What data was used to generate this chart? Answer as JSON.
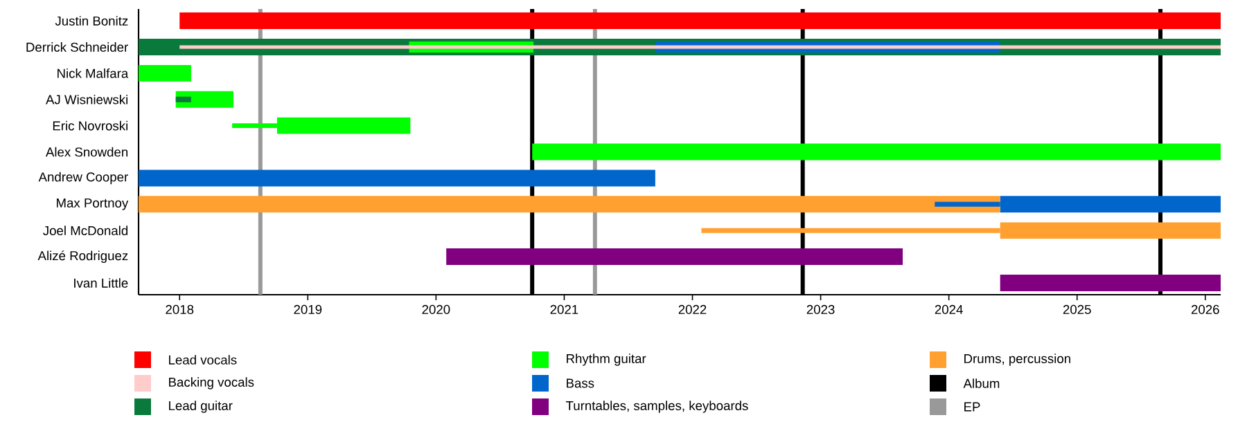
{
  "chart_data": {
    "type": "bar",
    "orientation": "horizontal",
    "categories": [
      "Justin Bonitz",
      "Derrick Schneider",
      "Nick Malfara",
      "AJ Wisniewski",
      "Eric Novroski",
      "Alex Snowden",
      "Andrew Cooper",
      "Max Portnoy",
      "Joel McDonald",
      "Alizé Rodriguez",
      "Ivan Little"
    ],
    "xlim": [
      2017.68,
      2026.12
    ],
    "xticks": [
      2018,
      2019,
      2020,
      2021,
      2022,
      2023,
      2024,
      2025,
      2026
    ],
    "series": [
      {
        "name": "Lead vocals",
        "color": "#ff0000",
        "base": [
          2018.0,
          null,
          null,
          null,
          null,
          null,
          null,
          null,
          null,
          null,
          null
        ],
        "values": [
          8.12,
          null,
          null,
          null,
          null,
          null,
          null,
          null,
          null,
          null,
          null
        ]
      },
      {
        "name": "Backing vocals",
        "color": "#ffcccc",
        "base": [
          null,
          2018.0,
          null,
          null,
          null,
          null,
          null,
          null,
          null,
          null,
          null
        ],
        "values": [
          null,
          8.12,
          null,
          null,
          null,
          null,
          null,
          null,
          null,
          null,
          null
        ]
      },
      {
        "name": "Lead guitar",
        "color": "#0a7a3c",
        "base": [
          null,
          2017.68,
          null,
          null,
          null,
          null,
          null,
          null,
          null,
          null,
          null
        ],
        "values": [
          null,
          8.44,
          null,
          null,
          null,
          null,
          null,
          null,
          null,
          null,
          null
        ]
      },
      {
        "name": "Rhythm guitar",
        "color": "#00ff00",
        "base": [
          null,
          null,
          2017.68,
          2017.97,
          2018.76,
          2020.75,
          null,
          null,
          null,
          null,
          null
        ],
        "values": [
          null,
          null,
          0.41,
          0.45,
          1.04,
          5.37,
          null,
          null,
          null,
          null,
          null
        ]
      },
      {
        "name": "Bass",
        "color": "#0066cc",
        "base": [
          null,
          null,
          null,
          null,
          null,
          null,
          2017.68,
          2024.4,
          null,
          null,
          null
        ],
        "values": [
          null,
          null,
          null,
          null,
          null,
          null,
          4.03,
          1.72,
          null,
          null,
          null
        ]
      },
      {
        "name": "Turntables, samples, keyboards",
        "color": "#800080",
        "base": [
          null,
          null,
          null,
          null,
          null,
          null,
          null,
          null,
          null,
          2020.08,
          2024.4
        ],
        "values": [
          null,
          null,
          null,
          null,
          null,
          null,
          null,
          null,
          null,
          3.56,
          1.72
        ]
      },
      {
        "name": "Drums, percussion",
        "color": "#ffa030",
        "base": [
          null,
          null,
          null,
          null,
          null,
          null,
          null,
          2017.68,
          2024.4,
          null,
          null
        ],
        "values": [
          null,
          null,
          null,
          null,
          null,
          null,
          null,
          6.72,
          1.72,
          null,
          null
        ]
      },
      {
        "color": "#00ff00",
        "base": [
          null,
          2019.79,
          null,
          null,
          null,
          null,
          null,
          null,
          null,
          null,
          null
        ],
        "values": [
          null,
          0.97,
          null,
          null,
          null,
          null,
          null,
          null,
          null,
          null,
          null
        ]
      },
      {
        "color": "#0066cc",
        "base": [
          null,
          2021.71,
          null,
          null,
          null,
          null,
          null,
          null,
          null,
          null,
          null
        ],
        "values": [
          null,
          2.69,
          null,
          null,
          null,
          null,
          null,
          null,
          null,
          null,
          null
        ]
      },
      {
        "color": "#00ff00",
        "base": [
          null,
          null,
          null,
          null,
          2018.41,
          null,
          null,
          null,
          null,
          null,
          null
        ],
        "values": [
          null,
          null,
          null,
          null,
          0.35,
          null,
          null,
          null,
          null,
          null,
          null
        ]
      },
      {
        "color": "#0066cc",
        "base": [
          null,
          null,
          null,
          null,
          null,
          null,
          null,
          2023.89,
          null,
          null,
          null
        ],
        "values": [
          null,
          null,
          null,
          null,
          null,
          null,
          null,
          0.51,
          null,
          null,
          null
        ]
      },
      {
        "color": "#ffa030",
        "base": [
          null,
          null,
          null,
          null,
          null,
          null,
          null,
          null,
          2022.07,
          null,
          null
        ],
        "values": [
          null,
          null,
          null,
          null,
          null,
          null,
          null,
          null,
          2.33,
          null,
          null
        ]
      },
      {
        "color": "#0a7a3c",
        "base": [
          null,
          null,
          null,
          2017.97,
          null,
          null,
          null,
          null,
          null,
          null,
          null
        ],
        "values": [
          null,
          null,
          null,
          0.12,
          null,
          null,
          null,
          null,
          null,
          null,
          null
        ]
      }
    ],
    "ref_lines": [
      {
        "axis": "x",
        "value": 2020.75,
        "label": "Album",
        "color": "#000000"
      },
      {
        "axis": "x",
        "value": 2018.63,
        "label": "EP",
        "color": "#999999"
      },
      {
        "axis": "x",
        "value": 2022.86,
        "color": "#000000"
      },
      {
        "axis": "x",
        "value": 2025.65,
        "color": "#000000"
      },
      {
        "axis": "x",
        "value": 2021.24,
        "color": "#999999"
      }
    ],
    "legend": "bottom"
  }
}
